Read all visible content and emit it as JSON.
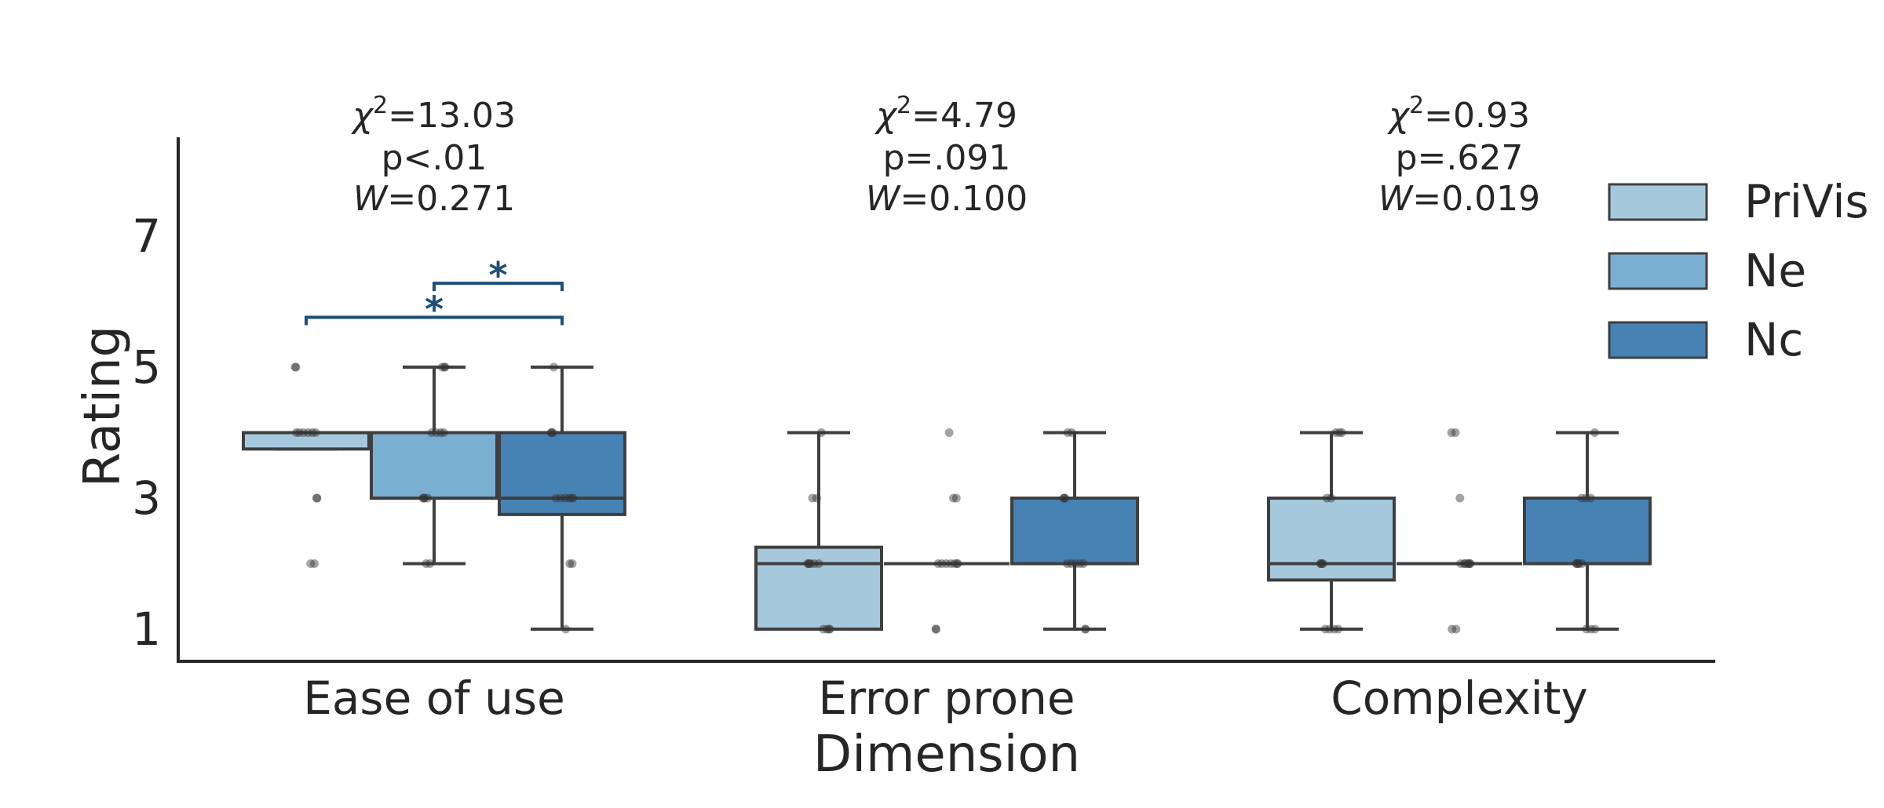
{
  "chart_data": {
    "type": "box",
    "xlabel": "Dimension",
    "ylabel": "Rating",
    "ylim": [
      0.5,
      8.5
    ],
    "yticks": [
      1,
      3,
      5,
      7
    ],
    "categories": [
      "Ease of use",
      "Error prone",
      "Complexity"
    ],
    "legend": {
      "position": "right"
    },
    "grid": false,
    "series": [
      {
        "name": "PriVis",
        "color": "#a6c8dc",
        "boxes": [
          {
            "whisker_low": 3.75,
            "q1": 3.75,
            "median": 4,
            "q3": 4,
            "whisker_high": 4,
            "outliers": [
              2,
              2,
              3,
              3,
              5,
              5
            ]
          },
          {
            "whisker_low": 1,
            "q1": 1,
            "median": 2,
            "q3": 2.25,
            "whisker_high": 4,
            "outliers": []
          },
          {
            "whisker_low": 1,
            "q1": 1.75,
            "median": 2,
            "q3": 3,
            "whisker_high": 4,
            "outliers": []
          }
        ],
        "points": [
          [
            2,
            2,
            3,
            3,
            4,
            4,
            4,
            4,
            4,
            4,
            5,
            5
          ],
          [
            1,
            1,
            1,
            1,
            2,
            2,
            2,
            2,
            2,
            2,
            3,
            3,
            4
          ],
          [
            1,
            1,
            1,
            1,
            2,
            2,
            2,
            2,
            3,
            3,
            4,
            4,
            4
          ]
        ]
      },
      {
        "name": "Ne",
        "color": "#7bafd2",
        "boxes": [
          {
            "whisker_low": 2,
            "q1": 3,
            "median": 4,
            "q3": 4,
            "whisker_high": 5,
            "outliers": []
          },
          {
            "whisker_low": 2,
            "q1": 2,
            "median": 2,
            "q3": 2,
            "whisker_high": 2,
            "outliers": [
              1,
              1,
              3,
              3,
              4
            ]
          },
          {
            "whisker_low": 2,
            "q1": 2,
            "median": 2,
            "q3": 2,
            "whisker_high": 2,
            "outliers": [
              1,
              1,
              3,
              4,
              4
            ]
          }
        ],
        "points": [
          [
            2,
            2,
            3,
            3,
            3,
            3,
            4,
            4,
            4,
            4,
            5,
            5,
            5
          ],
          [
            1,
            1,
            2,
            2,
            2,
            2,
            2,
            2,
            2,
            3,
            3,
            4
          ],
          [
            1,
            1,
            2,
            2,
            2,
            2,
            2,
            2,
            2,
            3,
            4,
            4
          ]
        ]
      },
      {
        "name": "Nc",
        "color": "#4682b4",
        "boxes": [
          {
            "whisker_low": 1,
            "q1": 2.75,
            "median": 3,
            "q3": 4,
            "whisker_high": 5,
            "outliers": []
          },
          {
            "whisker_low": 1,
            "q1": 2,
            "median": 2,
            "q3": 3,
            "whisker_high": 4,
            "outliers": []
          },
          {
            "whisker_low": 1,
            "q1": 2,
            "median": 2,
            "q3": 3,
            "whisker_high": 4,
            "outliers": []
          }
        ],
        "points": [
          [
            1,
            2,
            2,
            3,
            3,
            3,
            3,
            3,
            3,
            4,
            4,
            4,
            5
          ],
          [
            1,
            1,
            2,
            2,
            2,
            2,
            2,
            3,
            3,
            3,
            4,
            4
          ],
          [
            1,
            1,
            1,
            2,
            2,
            2,
            2,
            2,
            3,
            3,
            3,
            4
          ]
        ]
      }
    ],
    "annotations": [
      {
        "category": 0,
        "lines": [
          "13.03",
          "p<.01",
          "0.271"
        ]
      },
      {
        "category": 1,
        "lines": [
          "4.79",
          "p=.091",
          "0.100"
        ]
      },
      {
        "category": 2,
        "lines": [
          "0.93",
          "p=.627",
          "0.019"
        ]
      }
    ],
    "significance": [
      {
        "category": 0,
        "from": "Ne",
        "to": "Nc",
        "y": 6.28,
        "label": "*"
      },
      {
        "category": 0,
        "from": "PriVis",
        "to": "Nc",
        "y": 5.76,
        "label": "*"
      }
    ],
    "significance_color": "#1f4e79"
  }
}
